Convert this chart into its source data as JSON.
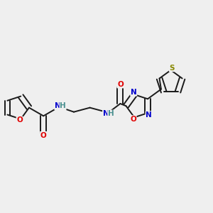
{
  "bg_color": "#efefef",
  "bond_color": "#1a1a1a",
  "atom_colors": {
    "O": "#e00000",
    "N": "#0000cc",
    "S": "#888800",
    "H": "#4a9090",
    "C": "#1a1a1a"
  },
  "figsize": [
    3.0,
    3.0
  ],
  "dpi": 100,
  "lw": 1.4,
  "fontsize": 7.5
}
